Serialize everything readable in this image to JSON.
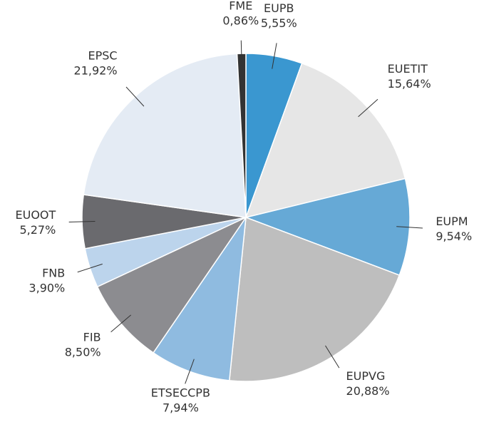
{
  "chart_data": {
    "type": "pie",
    "categories": [
      "EUPB",
      "EUETIT",
      "EUPM",
      "EUPVG",
      "ETSECCPB",
      "FIB",
      "FNB",
      "EUOOT",
      "EPSC",
      "FME"
    ],
    "values": [
      5.55,
      15.64,
      9.54,
      20.88,
      7.94,
      8.5,
      3.9,
      5.27,
      21.92,
      0.86
    ],
    "value_labels": [
      "5,55%",
      "15,64%",
      "9,54%",
      "20,88%",
      "7,94%",
      "8,50%",
      "3,90%",
      "5,27%",
      "21,92%",
      "0,86%"
    ],
    "colors": [
      "#3a97d0",
      "#e6e6e6",
      "#66a9d6",
      "#bebebe",
      "#8fbbe0",
      "#8c8c90",
      "#bcd4ec",
      "#6a6a6e",
      "#e4ebf4",
      "#333333"
    ]
  }
}
